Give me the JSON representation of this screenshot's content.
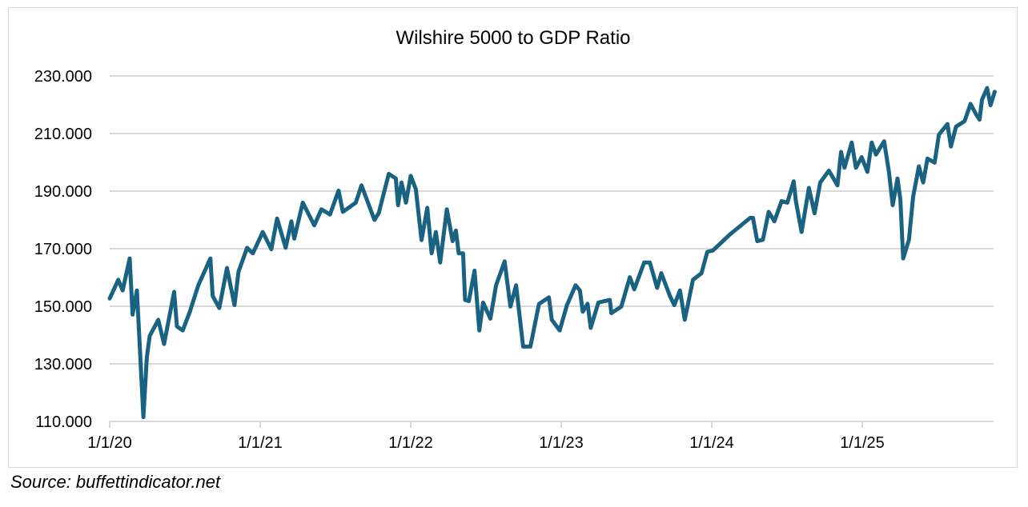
{
  "chart_data": {
    "type": "line",
    "title": "Wilshire 5000 to GDP Ratio",
    "xlabel": "",
    "ylabel": "",
    "ylim": [
      110,
      230
    ],
    "xlim": [
      2020.0,
      2025.89
    ],
    "grid": true,
    "y_ticks": [
      "110.000",
      "130.000",
      "150.000",
      "170.000",
      "190.000",
      "210.000",
      "230.000"
    ],
    "y_tick_values": [
      110,
      130,
      150,
      170,
      190,
      210,
      230
    ],
    "x_ticks": [
      "1/1/20",
      "1/1/21",
      "1/1/22",
      "1/1/23",
      "1/1/24",
      "1/1/25"
    ],
    "x_tick_values": [
      2020,
      2021,
      2022,
      2023,
      2024,
      2025
    ],
    "line_color": "#1a6282",
    "series": [
      {
        "name": "Wilshire 5000 to GDP Ratio",
        "x": [
          2020.0,
          2020.057,
          2020.086,
          2020.133,
          2020.152,
          2020.181,
          2020.224,
          2020.247,
          2020.266,
          2020.323,
          2020.361,
          2020.428,
          2020.447,
          2020.485,
          2020.532,
          2020.589,
          2020.669,
          2020.684,
          2020.728,
          2020.779,
          2020.829,
          2020.856,
          2020.913,
          2020.951,
          2021.017,
          2021.074,
          2021.112,
          2021.169,
          2021.207,
          2021.226,
          2021.283,
          2021.359,
          2021.407,
          2021.464,
          2021.521,
          2021.549,
          2021.635,
          2021.673,
          2021.759,
          2021.787,
          2021.854,
          2021.901,
          2021.916,
          2021.939,
          2021.968,
          2022.0,
          2022.034,
          2022.072,
          2022.11,
          2022.139,
          2022.167,
          2022.196,
          2022.24,
          2022.278,
          2022.3,
          2022.319,
          2022.348,
          2022.361,
          2022.386,
          2022.424,
          2022.456,
          2022.481,
          2022.529,
          2022.567,
          2022.624,
          2022.662,
          2022.7,
          2022.747,
          2022.795,
          2022.852,
          2022.918,
          2022.937,
          2022.99,
          2023.038,
          2023.095,
          2023.124,
          2023.143,
          2023.175,
          2023.196,
          2023.247,
          2023.323,
          2023.333,
          2023.399,
          2023.456,
          2023.485,
          2023.551,
          2023.589,
          2023.637,
          2023.665,
          2023.722,
          2023.751,
          2023.789,
          2023.821,
          2023.875,
          2023.932,
          2023.97,
          2024.008,
          2024.122,
          2024.255,
          2024.274,
          2024.302,
          2024.34,
          2024.378,
          2024.416,
          2024.464,
          2024.502,
          2024.544,
          2024.559,
          2024.597,
          2024.645,
          2024.683,
          2024.721,
          2024.778,
          2024.835,
          2024.859,
          2024.882,
          2024.93,
          2024.958,
          2024.996,
          2025.034,
          2025.063,
          2025.091,
          2025.145,
          2025.177,
          2025.202,
          2025.234,
          2025.253,
          2025.272,
          2025.31,
          2025.338,
          2025.376,
          2025.405,
          2025.433,
          2025.481,
          2025.509,
          2025.566,
          2025.589,
          2025.623,
          2025.68,
          2025.719,
          2025.757,
          2025.779,
          2025.795,
          2025.829,
          2025.852,
          2025.88
        ],
        "y": [
          152.7,
          159.2,
          155.5,
          166.6,
          147.1,
          155.5,
          111.5,
          132.3,
          139.7,
          145.3,
          136.9,
          155.0,
          143.0,
          141.6,
          148.0,
          157.3,
          166.6,
          153.6,
          149.4,
          163.3,
          150.4,
          162.0,
          170.3,
          168.4,
          175.8,
          169.8,
          180.5,
          170.3,
          179.5,
          173.5,
          186.0,
          178.1,
          183.7,
          181.9,
          190.2,
          182.8,
          186.0,
          192.0,
          180.0,
          182.3,
          196.0,
          194.4,
          185.1,
          193.0,
          186.0,
          195.3,
          190.6,
          173.0,
          184.2,
          168.4,
          175.8,
          165.2,
          183.7,
          172.6,
          176.3,
          168.4,
          168.4,
          152.2,
          151.8,
          162.4,
          141.6,
          151.3,
          145.7,
          157.3,
          165.6,
          149.9,
          157.3,
          136.0,
          136.0,
          150.8,
          153.1,
          145.3,
          141.6,
          150.4,
          157.3,
          155.5,
          148.1,
          150.9,
          142.5,
          151.3,
          152.2,
          147.6,
          149.9,
          160.1,
          155.9,
          165.2,
          165.2,
          156.4,
          161.5,
          153.6,
          150.4,
          155.5,
          145.3,
          159.2,
          161.5,
          168.9,
          169.4,
          175.0,
          180.7,
          180.7,
          172.6,
          173.1,
          182.8,
          179.5,
          186.5,
          186.0,
          193.4,
          186.5,
          175.8,
          191.1,
          182.3,
          193.0,
          197.1,
          192.0,
          203.6,
          198.1,
          206.9,
          198.1,
          201.8,
          196.7,
          206.9,
          202.7,
          207.3,
          196.7,
          185.1,
          194.4,
          187.0,
          166.6,
          173.1,
          188.0,
          198.6,
          193.0,
          201.3,
          199.9,
          209.6,
          213.3,
          205.5,
          212.4,
          214.3,
          220.3,
          216.6,
          214.8,
          221.7,
          225.8,
          219.8,
          224.5
        ]
      }
    ]
  },
  "source": "Source: buffettindicator.net"
}
